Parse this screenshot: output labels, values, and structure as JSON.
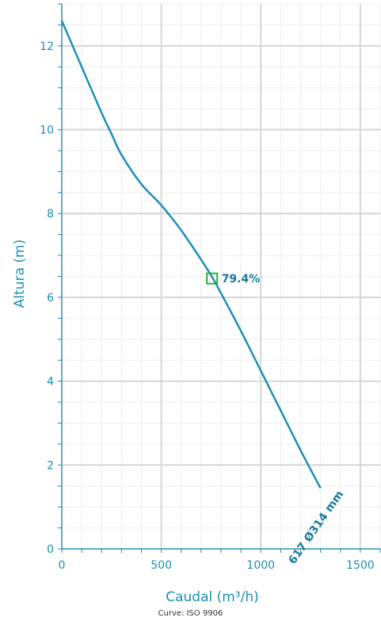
{
  "footer": "Curve: ISO 9906",
  "colors": {
    "accent": "#1a8fb3",
    "curve": "#1f8fb5",
    "marker": "#22b33a",
    "grid_major": "#d6d6d6",
    "grid_minor": "#eeeeee"
  },
  "chart_data": {
    "type": "line",
    "xlabel": "Caudal (m³/h)",
    "ylabel": "Altura (m)",
    "xlim": [
      0,
      1600
    ],
    "ylim": [
      0,
      13
    ],
    "xticks": [
      0,
      500,
      1000,
      1500
    ],
    "yticks": [
      0,
      2,
      4,
      6,
      8,
      10,
      12
    ],
    "grid": true,
    "series": [
      {
        "name": "617 Ø314 mm",
        "x": [
          0,
          100,
          200,
          250,
          300,
          400,
          500,
          600,
          700,
          760,
          800,
          900,
          1000,
          1100,
          1200,
          1300
        ],
        "y": [
          12.6,
          11.5,
          10.4,
          9.9,
          9.4,
          8.7,
          8.2,
          7.6,
          6.9,
          6.45,
          6.1,
          5.2,
          4.25,
          3.3,
          2.35,
          1.45
        ]
      }
    ],
    "annotations": [
      {
        "label": "79.4%",
        "x": 755,
        "y": 6.45,
        "marker": "square"
      },
      {
        "label": "617 Ø314 mm",
        "x": 1300,
        "y": 1.45
      }
    ]
  }
}
